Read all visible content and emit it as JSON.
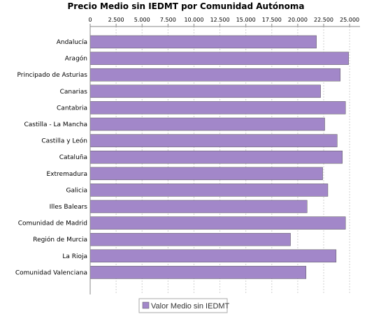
{
  "chart_data": {
    "type": "bar",
    "orientation": "horizontal",
    "title": "Precio Medio sin IEDMT por Comunidad Autónoma",
    "xlabel": "",
    "ylabel": "",
    "xlim": [
      0,
      26000
    ],
    "x_ticks": [
      0,
      2500,
      5000,
      7500,
      10000,
      12500,
      15000,
      17500,
      20000,
      22500,
      25000
    ],
    "x_tick_labels": [
      "0",
      "2.500",
      "5.000",
      "7.500",
      "10.000",
      "12.500",
      "15.000",
      "17.500",
      "20.000",
      "22.500",
      "25.000"
    ],
    "x_axis_position": "top",
    "grid": "vertical dashed",
    "categories": [
      "Andalucía",
      "Aragón",
      "Principado de Asturias",
      "Canarias",
      "Cantabria",
      "Castilla - La Mancha",
      "Castilla y León",
      "Cataluña",
      "Extremadura",
      "Galicia",
      "Illes Balears",
      "Comunidad de Madrid",
      "Región de Murcia",
      "La Rioja",
      "Comunidad Valenciana"
    ],
    "series": [
      {
        "name": "Valor Medio sin IEDMT",
        "color": "#a287c9",
        "values": [
          21800,
          24900,
          24100,
          22200,
          24600,
          22600,
          23800,
          24300,
          22400,
          22900,
          20900,
          24600,
          19300,
          23700,
          20800
        ]
      }
    ],
    "legend": "bottom-center"
  }
}
